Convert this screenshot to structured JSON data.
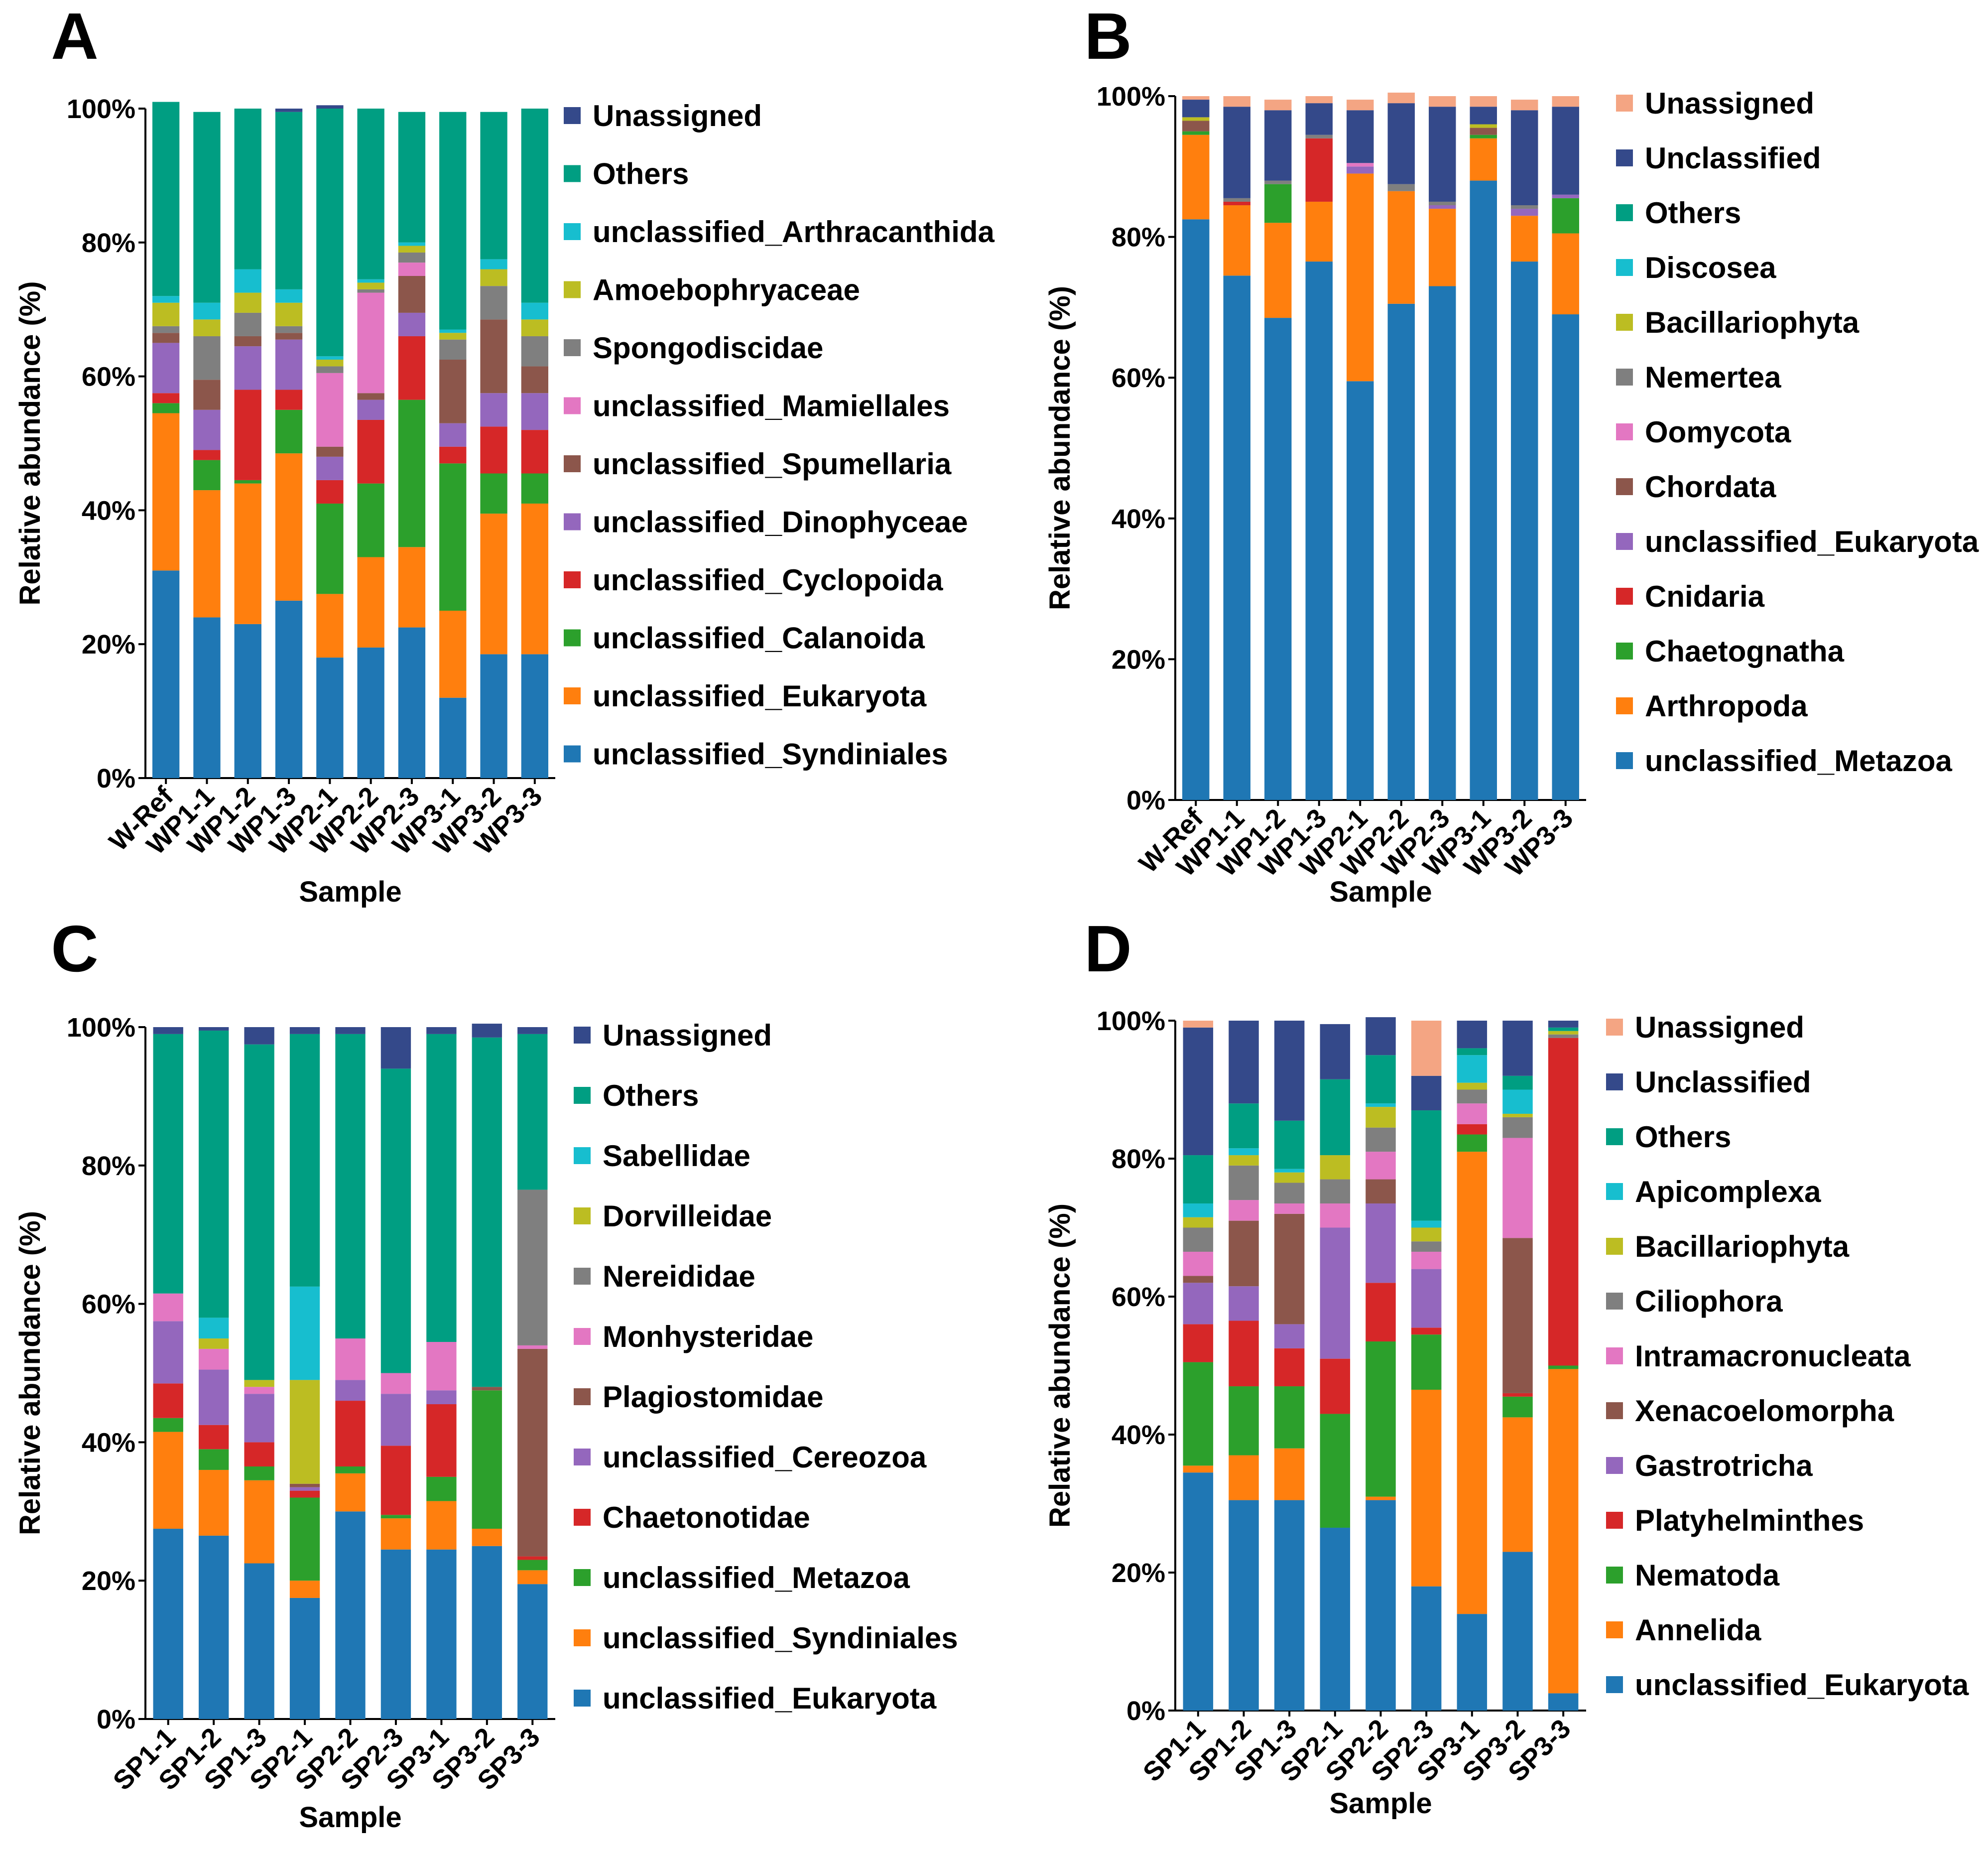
{
  "figure": {
    "panels": [
      "A",
      "B",
      "C",
      "D"
    ]
  },
  "chart_data": [
    {
      "panel": "A",
      "type": "bar",
      "stacked": true,
      "xlabel": "Sample",
      "ylabel": "Relative abundance (%)",
      "ylim": [
        0,
        100
      ],
      "yticks": [
        "0%",
        "20%",
        "40%",
        "60%",
        "80%",
        "100%"
      ],
      "categories": [
        "W-Ref",
        "WP1-1",
        "WP1-2",
        "WP1-3",
        "WP2-1",
        "WP2-2",
        "WP2-3",
        "WP3-1",
        "WP3-2",
        "WP3-3"
      ],
      "legend_position": "right",
      "series": [
        {
          "name": "unclassified_Syndiniales",
          "color": "#1f77b4",
          "values": [
            31,
            24,
            23,
            26.5,
            18,
            19.5,
            22.5,
            12,
            18.5,
            18.5
          ]
        },
        {
          "name": "unclassified_Eukaryota",
          "color": "#ff7f0e",
          "values": [
            23.5,
            19,
            21,
            22,
            9.5,
            13.5,
            12,
            13,
            21,
            22.5
          ]
        },
        {
          "name": "unclassified_Calanoida",
          "color": "#2ca02c",
          "values": [
            1.5,
            4.5,
            0.5,
            6.5,
            13.5,
            11,
            22,
            22,
            6,
            4.5
          ]
        },
        {
          "name": "unclassified_Cyclopoida",
          "color": "#d62728",
          "values": [
            1.5,
            1.5,
            13.5,
            3,
            3.5,
            9.5,
            9.5,
            2.5,
            7,
            6.5
          ]
        },
        {
          "name": "unclassified_Dinophyceae",
          "color": "#9467bd",
          "values": [
            7.5,
            6,
            6.5,
            7.5,
            3.5,
            3,
            3.5,
            3.5,
            5,
            5.5
          ]
        },
        {
          "name": "unclassified_Spumellaria",
          "color": "#8c564b",
          "values": [
            1.5,
            4.5,
            1.5,
            1,
            1.5,
            1,
            5.5,
            9.5,
            11,
            4
          ]
        },
        {
          "name": "unclassified_Mamiellales",
          "color": "#e377c2",
          "values": [
            0,
            0,
            0,
            0,
            11,
            15,
            2,
            0,
            0,
            0
          ]
        },
        {
          "name": "Spongodiscidae",
          "color": "#7f7f7f",
          "values": [
            1,
            6.5,
            3.5,
            1,
            1,
            0.5,
            1.5,
            3,
            5,
            4.5
          ]
        },
        {
          "name": "Amoebophryaceae",
          "color": "#bcbd22",
          "values": [
            3.5,
            2.5,
            3,
            3.5,
            1,
            1,
            1,
            1,
            2.5,
            2.5
          ]
        },
        {
          "name": "unclassified_Arthracanthida",
          "color": "#17becf",
          "values": [
            1,
            2.5,
            3.5,
            2,
            0.5,
            0.5,
            0.5,
            0.5,
            1.5,
            2.5
          ]
        },
        {
          "name": "Others",
          "color": "#009E82",
          "values": [
            29,
            28.5,
            24,
            26.5,
            37,
            25.5,
            19.5,
            32.5,
            22,
            29
          ]
        },
        {
          "name": "Unassigned",
          "color": "#34498a",
          "values": [
            0,
            0,
            0,
            0.5,
            0.5,
            0,
            0,
            0,
            0,
            0
          ]
        }
      ]
    },
    {
      "panel": "B",
      "type": "bar",
      "stacked": true,
      "xlabel": "Sample",
      "ylabel": "Relative abundance (%)",
      "ylim": [
        0,
        100
      ],
      "yticks": [
        "0%",
        "20%",
        "40%",
        "60%",
        "80%",
        "100%"
      ],
      "categories": [
        "W-Ref",
        "WP1-1",
        "WP1-2",
        "WP1-3",
        "WP2-1",
        "WP2-2",
        "WP2-3",
        "WP3-1",
        "WP3-2",
        "WP3-3"
      ],
      "legend_position": "right",
      "series": [
        {
          "name": "unclassified_Metazoa",
          "color": "#1f77b4",
          "values": [
            82.5,
            74.5,
            68.5,
            76.5,
            59.5,
            70.5,
            73,
            88,
            76.5,
            69
          ]
        },
        {
          "name": "Arthropoda",
          "color": "#ff7f0e",
          "values": [
            12,
            10,
            13.5,
            8.5,
            29.5,
            16,
            11,
            6,
            6.5,
            11.5
          ]
        },
        {
          "name": "Chaetognatha",
          "color": "#2ca02c",
          "values": [
            0.5,
            0,
            5.5,
            0,
            0,
            0,
            0,
            0.5,
            0,
            5
          ]
        },
        {
          "name": "Cnidaria",
          "color": "#d62728",
          "values": [
            0,
            0.5,
            0,
            9,
            0,
            0,
            0,
            0,
            0,
            0
          ]
        },
        {
          "name": "unclassified_Eukaryota",
          "color": "#9467bd",
          "values": [
            0,
            0,
            0,
            0,
            1,
            0,
            0.5,
            0,
            1,
            0.5
          ]
        },
        {
          "name": "Chordata",
          "color": "#8c564b",
          "values": [
            1.5,
            0,
            0,
            0,
            0,
            0,
            0,
            1,
            0,
            0
          ]
        },
        {
          "name": "Oomycota",
          "color": "#e377c2",
          "values": [
            0,
            0,
            0,
            0,
            0.5,
            0,
            0,
            0,
            0,
            0
          ]
        },
        {
          "name": "Nemertea",
          "color": "#7f7f7f",
          "values": [
            0,
            0.5,
            0.5,
            0.5,
            0,
            1,
            0.5,
            0,
            0.5,
            0
          ]
        },
        {
          "name": "Bacillariophyta",
          "color": "#bcbd22",
          "values": [
            0.5,
            0,
            0,
            0,
            0,
            0,
            0,
            0.5,
            0,
            0
          ]
        },
        {
          "name": "Discosea",
          "color": "#17becf",
          "values": [
            0,
            0,
            0,
            0,
            0,
            0,
            0,
            0,
            0,
            0
          ]
        },
        {
          "name": "Others",
          "color": "#009E82",
          "values": [
            0,
            0,
            0,
            0,
            0,
            0,
            0,
            0,
            0,
            0
          ]
        },
        {
          "name": "Unclassified",
          "color": "#34498a",
          "values": [
            2.5,
            13,
            10,
            4.5,
            7.5,
            11.5,
            13.5,
            2.5,
            13.5,
            12.5
          ]
        },
        {
          "name": "Unassigned",
          "color": "#f4a583",
          "values": [
            0.5,
            1.5,
            1.5,
            1,
            1.5,
            1.5,
            1.5,
            1.5,
            1.5,
            1.5
          ]
        }
      ]
    },
    {
      "panel": "C",
      "type": "bar",
      "stacked": true,
      "xlabel": "Sample",
      "ylabel": "Relative abundance (%)",
      "ylim": [
        0,
        100
      ],
      "yticks": [
        "0%",
        "20%",
        "40%",
        "60%",
        "80%",
        "100%"
      ],
      "categories": [
        "SP1-1",
        "SP1-2",
        "SP1-3",
        "SP2-1",
        "SP2-2",
        "SP2-3",
        "SP3-1",
        "SP3-2",
        "SP3-3"
      ],
      "legend_position": "right",
      "series": [
        {
          "name": "unclassified_Eukaryota",
          "color": "#1f77b4",
          "values": [
            27.5,
            26.5,
            22.5,
            17.5,
            30,
            24.5,
            24.5,
            25,
            19.5
          ]
        },
        {
          "name": "unclassified_Syndiniales",
          "color": "#ff7f0e",
          "values": [
            14,
            9.5,
            12,
            2.5,
            5.5,
            4.5,
            7,
            2.5,
            2
          ]
        },
        {
          "name": "unclassified_Metazoa",
          "color": "#2ca02c",
          "values": [
            2,
            3,
            2,
            12,
            1,
            0.5,
            3.5,
            20,
            1.5
          ]
        },
        {
          "name": "Chaetonotidae",
          "color": "#d62728",
          "values": [
            5,
            3.5,
            3.5,
            1,
            9.5,
            10,
            10.5,
            0,
            0.5
          ]
        },
        {
          "name": "unclassified_Cereozoa",
          "color": "#9467bd",
          "values": [
            9,
            8,
            7,
            0.5,
            3,
            7.5,
            2,
            0,
            0
          ]
        },
        {
          "name": "Plagiostomidae",
          "color": "#8c564b",
          "values": [
            0,
            0,
            0,
            0.5,
            0,
            0,
            0,
            0.5,
            30
          ]
        },
        {
          "name": "Monhysteridae",
          "color": "#e377c2",
          "values": [
            4,
            3,
            1,
            0,
            6,
            3,
            7,
            0,
            0.5
          ]
        },
        {
          "name": "Nereididae",
          "color": "#7f7f7f",
          "values": [
            0,
            0,
            0,
            0,
            0,
            0,
            0,
            0,
            22.5
          ]
        },
        {
          "name": "Dorvilleidae",
          "color": "#bcbd22",
          "values": [
            0,
            1.5,
            1,
            15,
            0,
            0,
            0,
            0,
            0
          ]
        },
        {
          "name": "Sabellidae",
          "color": "#17becf",
          "values": [
            0,
            3,
            0,
            13.5,
            0,
            0,
            0,
            0,
            0
          ]
        },
        {
          "name": "Others",
          "color": "#009E82",
          "values": [
            37.5,
            41.5,
            48.5,
            36.5,
            44,
            44,
            44.5,
            50.5,
            22.5
          ]
        },
        {
          "name": "Unassigned",
          "color": "#34498a",
          "values": [
            1,
            0.5,
            2.5,
            1,
            1,
            6,
            1,
            2,
            1
          ]
        }
      ]
    },
    {
      "panel": "D",
      "type": "bar",
      "stacked": true,
      "xlabel": "Sample",
      "ylabel": "Relative abundance (%)",
      "ylim": [
        0,
        100
      ],
      "yticks": [
        "0%",
        "20%",
        "40%",
        "60%",
        "80%",
        "100%"
      ],
      "categories": [
        "SP1-1",
        "SP1-2",
        "SP1-3",
        "SP2-1",
        "SP2-2",
        "SP2-3",
        "SP3-1",
        "SP3-2",
        "SP3-3"
      ],
      "legend_position": "right",
      "series": [
        {
          "name": "unclassified_Eukaryota",
          "color": "#1f77b4",
          "values": [
            34.5,
            30.5,
            30.5,
            26.5,
            30.5,
            18,
            14,
            23,
            2.5
          ]
        },
        {
          "name": "Annelida",
          "color": "#ff7f0e",
          "values": [
            1,
            6.5,
            7.5,
            0,
            0.5,
            28.5,
            67,
            19.5,
            47
          ]
        },
        {
          "name": "Nematoda",
          "color": "#2ca02c",
          "values": [
            15,
            10,
            9,
            16.5,
            22.5,
            8,
            2.5,
            3,
            0.5
          ]
        },
        {
          "name": "Platyhelminthes",
          "color": "#d62728",
          "values": [
            5.5,
            9.5,
            5.5,
            8,
            8.5,
            1,
            1.5,
            0.5,
            47.5
          ]
        },
        {
          "name": "Gastrotricha",
          "color": "#9467bd",
          "values": [
            6,
            5,
            3.5,
            19,
            11.5,
            8.5,
            0,
            0,
            0
          ]
        },
        {
          "name": "Xenacoelomorpha",
          "color": "#8c564b",
          "values": [
            1,
            9.5,
            16,
            0,
            3.5,
            0,
            0,
            22.5,
            0
          ]
        },
        {
          "name": "Intramacronucleata",
          "color": "#e377c2",
          "values": [
            3.5,
            3,
            1.5,
            3.5,
            4,
            2.5,
            3,
            14.5,
            0
          ]
        },
        {
          "name": "Ciliophora",
          "color": "#7f7f7f",
          "values": [
            3.5,
            5,
            3,
            3.5,
            3.5,
            1.5,
            2,
            3,
            0.5
          ]
        },
        {
          "name": "Bacillariophyta",
          "color": "#bcbd22",
          "values": [
            1.5,
            1.5,
            1.5,
            3.5,
            3,
            2,
            1,
            0.5,
            0.5
          ]
        },
        {
          "name": "Apicomplexa",
          "color": "#17becf",
          "values": [
            2,
            1,
            0.5,
            0,
            0.5,
            1,
            4,
            3.5,
            0
          ]
        },
        {
          "name": "Others",
          "color": "#009E82",
          "values": [
            7,
            6.5,
            7,
            11,
            7,
            16,
            1,
            2,
            0.5
          ]
        },
        {
          "name": "Unclassified",
          "color": "#34498a",
          "values": [
            18.5,
            12,
            14.5,
            8,
            5.5,
            5,
            4,
            8,
            1
          ]
        },
        {
          "name": "Unassigned",
          "color": "#f4a583",
          "values": [
            1,
            0,
            0,
            0,
            0,
            8,
            0,
            0,
            0
          ]
        }
      ]
    }
  ]
}
